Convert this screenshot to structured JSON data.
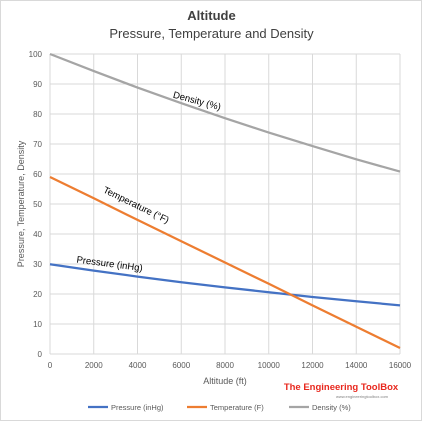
{
  "header": {
    "title": "Altitude",
    "subtitle": "Pressure, Temperature and Density"
  },
  "watermark": {
    "brand": "The Engineering ToolBox",
    "url": "www.engineeringtoolbox.com"
  },
  "colors": {
    "pressure": "#4472c4",
    "temperature": "#ed7d31",
    "density": "#a5a5a5",
    "grid": "#d9d9d9",
    "brand": "#e8281e"
  },
  "chart_data": {
    "type": "line",
    "title": "Altitude",
    "subtitle": "Pressure, Temperature and Density",
    "xlabel": "Altitude  (ft)",
    "ylabel": "Pressure, Temperature, Density",
    "xlim": [
      0,
      16000
    ],
    "ylim": [
      0,
      100
    ],
    "xticks": [
      0,
      2000,
      4000,
      6000,
      8000,
      10000,
      12000,
      14000,
      16000
    ],
    "yticks": [
      0,
      10,
      20,
      30,
      40,
      50,
      60,
      70,
      80,
      90,
      100
    ],
    "grid": true,
    "legend_position": "bottom",
    "series": [
      {
        "name": "Pressure (inHg)",
        "inline_label": "Pressure (inHg)",
        "color": "#4472c4",
        "x": [
          0,
          2000,
          4000,
          6000,
          8000,
          10000,
          12000,
          14000,
          16000
        ],
        "y": [
          29.9,
          27.8,
          25.8,
          23.9,
          22.2,
          20.6,
          19.0,
          17.6,
          16.2
        ]
      },
      {
        "name": "Temperature (F)",
        "inline_label": "Temperature (°F)",
        "color": "#ed7d31",
        "x": [
          0,
          2000,
          4000,
          6000,
          8000,
          10000,
          12000,
          14000,
          16000
        ],
        "y": [
          59,
          51.9,
          44.7,
          37.6,
          30.5,
          23.4,
          16.2,
          9.1,
          2
        ]
      },
      {
        "name": "Density (%)",
        "inline_label": "Density (%)",
        "color": "#a5a5a5",
        "x": [
          0,
          2000,
          4000,
          6000,
          8000,
          10000,
          12000,
          14000,
          16000
        ],
        "y": [
          100,
          94.3,
          88.8,
          83.6,
          78.6,
          73.8,
          69.3,
          64.9,
          60.8
        ]
      }
    ]
  }
}
